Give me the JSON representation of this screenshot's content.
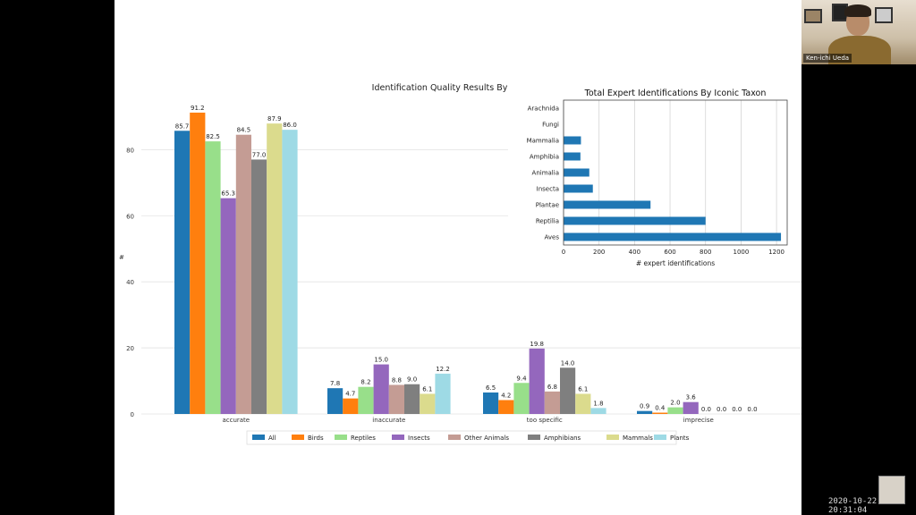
{
  "recording": {
    "speaker_name": "Ken-ichi Ueda",
    "timestamp": "2020-10-22 20:31:04"
  },
  "chart_data": [
    {
      "type": "bar",
      "title": "Identification Quality Results By Iconic Taxon",
      "xlabel": "",
      "ylabel": "#",
      "ylim": [
        0,
        92
      ],
      "yticks": [
        0,
        20,
        40,
        60,
        80
      ],
      "grid": true,
      "legend_position": "bottom",
      "categories": [
        "accurate",
        "inaccurate",
        "too specific",
        "imprecise"
      ],
      "series": [
        {
          "name": "All",
          "color": "#1f77b4",
          "values": [
            85.7,
            7.8,
            6.5,
            0.9
          ]
        },
        {
          "name": "Birds",
          "color": "#ff7f0e",
          "values": [
            91.2,
            4.7,
            4.2,
            0.4
          ]
        },
        {
          "name": "Reptiles",
          "color": "#98df8a",
          "values": [
            82.5,
            8.2,
            9.4,
            2.0
          ]
        },
        {
          "name": "Insects",
          "color": "#9467bd",
          "values": [
            65.3,
            15.0,
            19.8,
            3.6
          ]
        },
        {
          "name": "Other Animals",
          "color": "#c49c94",
          "values": [
            84.5,
            8.8,
            6.8,
            0.0
          ]
        },
        {
          "name": "Amphibians",
          "color": "#7f7f7f",
          "values": [
            77.0,
            9.0,
            14.0,
            0.0
          ]
        },
        {
          "name": "Mammals",
          "color": "#dbdb8d",
          "values": [
            87.9,
            6.1,
            6.1,
            0.0
          ]
        },
        {
          "name": "Plants",
          "color": "#9edae5",
          "values": [
            86.0,
            12.2,
            1.8,
            0.0
          ]
        }
      ]
    },
    {
      "type": "bar",
      "orientation": "horizontal",
      "title": "Total Expert Identifications By Iconic Taxon",
      "xlabel": "# expert identifications",
      "ylabel": "",
      "xlim": [
        0,
        1260
      ],
      "xticks": [
        0,
        200,
        400,
        600,
        800,
        1000,
        1200
      ],
      "grid": true,
      "color": "#1f77b4",
      "categories": [
        "Arachnida",
        "Fungi",
        "Mammalia",
        "Amphibia",
        "Animalia",
        "Insecta",
        "Plantae",
        "Reptilia",
        "Aves"
      ],
      "values": [
        0,
        0,
        98,
        95,
        145,
        165,
        490,
        800,
        1225
      ]
    }
  ]
}
